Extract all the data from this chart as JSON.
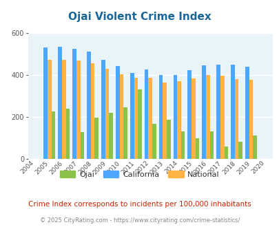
{
  "title": "Ojai Violent Crime Index",
  "years": [
    2004,
    2005,
    2006,
    2007,
    2008,
    2009,
    2010,
    2011,
    2012,
    2013,
    2014,
    2015,
    2016,
    2017,
    2018,
    2019,
    2020
  ],
  "ojai": [
    0,
    225,
    238,
    127,
    195,
    220,
    246,
    330,
    168,
    187,
    132,
    98,
    132,
    60,
    82,
    112,
    0
  ],
  "california": [
    0,
    530,
    535,
    525,
    510,
    473,
    443,
    410,
    425,
    400,
    400,
    422,
    447,
    450,
    450,
    440,
    0
  ],
  "national": [
    0,
    472,
    473,
    467,
    457,
    430,
    404,
    387,
    388,
    363,
    370,
    383,
    400,
    397,
    379,
    378,
    0
  ],
  "ojai_color": "#8bc34a",
  "california_color": "#4da6ff",
  "national_color": "#ffb347",
  "bg_color": "#e8f4f8",
  "ylim": [
    0,
    600
  ],
  "yticks": [
    0,
    200,
    400,
    600
  ],
  "subtitle": "Crime Index corresponds to incidents per 100,000 inhabitants",
  "footer": "© 2025 CityRating.com - https://www.cityrating.com/crime-statistics/",
  "title_color": "#1a6699",
  "subtitle_color": "#cc2200",
  "footer_color": "#888888",
  "legend_label_color": "#333333"
}
